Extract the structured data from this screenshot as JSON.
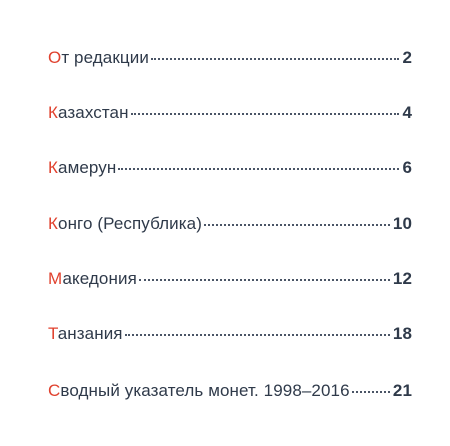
{
  "toc": {
    "entries": [
      {
        "initial": "О",
        "rest": "т редакции",
        "page": "2"
      },
      {
        "initial": "К",
        "rest": "азахстан",
        "page": "4"
      },
      {
        "initial": "К",
        "rest": "амерун",
        "page": "6"
      },
      {
        "initial": "К",
        "rest": "онго (Республика)",
        "page": "10"
      },
      {
        "initial": "М",
        "rest": "акедония",
        "page": "12"
      },
      {
        "initial": "Т",
        "rest": "анзания",
        "page": "18"
      },
      {
        "initial": "С",
        "rest": "водный указатель монет. 1998–2016",
        "page": "21"
      }
    ]
  },
  "colors": {
    "accent": "#e0412e",
    "text": "#2f3a4a"
  }
}
